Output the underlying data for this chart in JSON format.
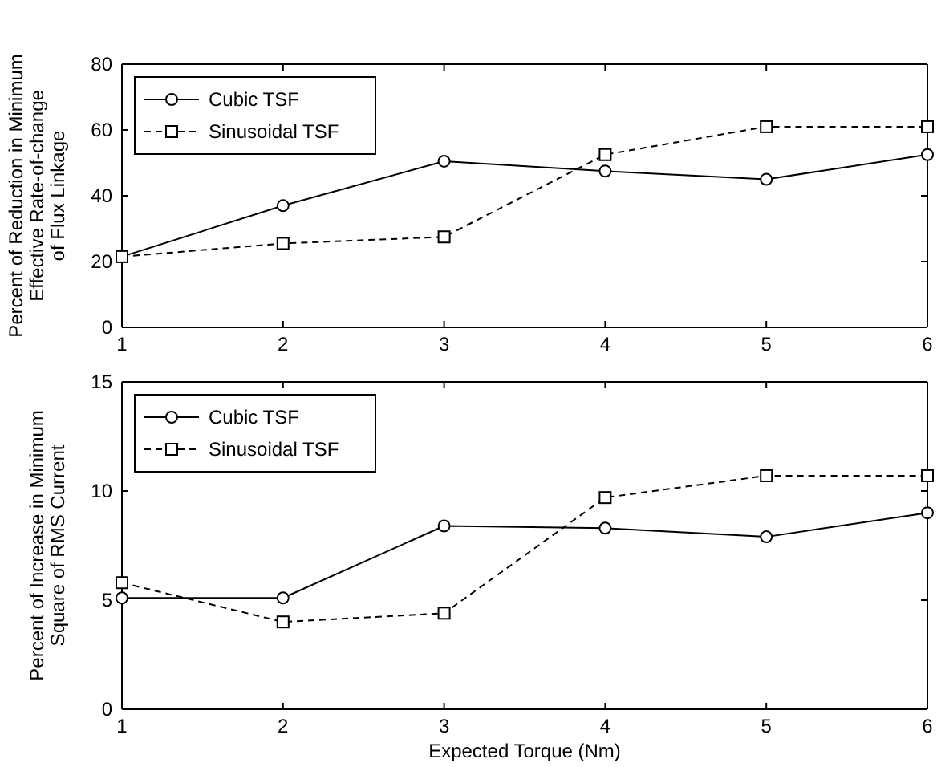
{
  "chart_data": [
    {
      "type": "line",
      "ylabel": "Percent of Reduction in Minimum\nEffective Rate-of-change\nof Flux Linkage",
      "x": [
        1,
        2,
        3,
        4,
        5,
        6
      ],
      "xlim": [
        1,
        6
      ],
      "xticks": [
        1,
        2,
        3,
        4,
        5,
        6
      ],
      "ylim": [
        0,
        80
      ],
      "yticks": [
        0,
        20,
        40,
        60,
        80
      ],
      "legend": "top left",
      "series": [
        {
          "name": "Cubic TSF",
          "color": "#000000",
          "marker": "circle",
          "line_style": "solid",
          "values": [
            21.5,
            37,
            50.5,
            47.5,
            45,
            52.5
          ]
        },
        {
          "name": "Sinusoidal TSF",
          "color": "#000000",
          "marker": "square",
          "line_style": "dashed",
          "values": [
            21.5,
            25.5,
            27.5,
            52.5,
            61,
            61
          ]
        }
      ]
    },
    {
      "type": "line",
      "ylabel": "Percent of Increase in Minimum\nSquare of RMS Current",
      "xlabel": "Expected Torque (Nm)",
      "x": [
        1,
        2,
        3,
        4,
        5,
        6
      ],
      "xlim": [
        1,
        6
      ],
      "xticks": [
        1,
        2,
        3,
        4,
        5,
        6
      ],
      "ylim": [
        0,
        15
      ],
      "yticks": [
        0,
        5,
        10,
        15
      ],
      "legend": "top left",
      "series": [
        {
          "name": "Cubic TSF",
          "color": "#000000",
          "marker": "circle",
          "line_style": "solid",
          "values": [
            5.1,
            5.1,
            8.4,
            8.3,
            7.9,
            9.0
          ]
        },
        {
          "name": "Sinusoidal TSF",
          "color": "#000000",
          "marker": "square",
          "line_style": "dashed",
          "values": [
            5.8,
            4.0,
            4.4,
            9.7,
            10.7,
            10.7
          ]
        }
      ]
    }
  ]
}
